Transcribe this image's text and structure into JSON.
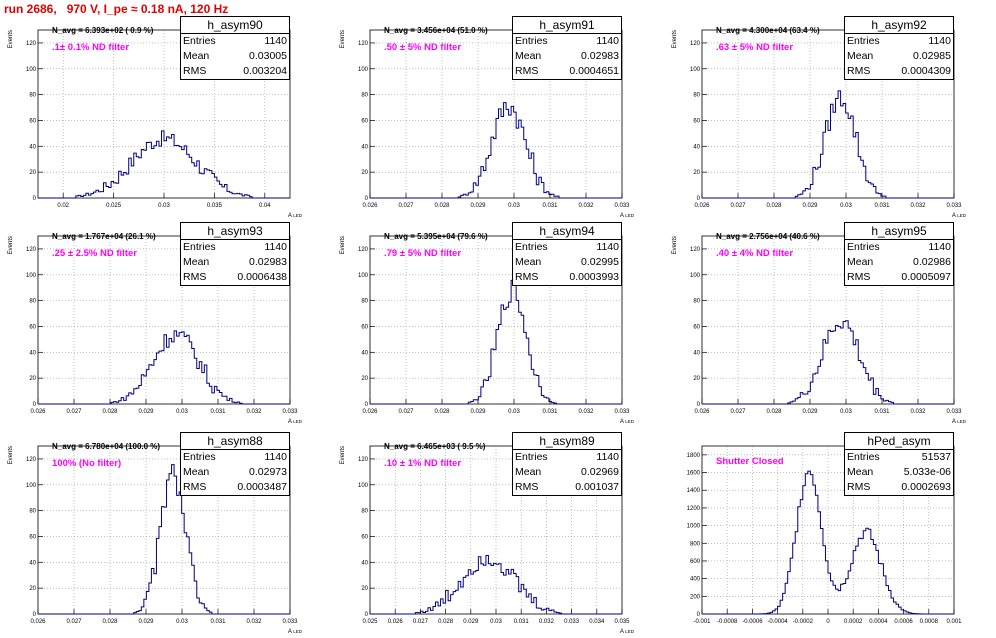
{
  "header": {
    "title": "run 2686,   970 V, I_pe ≈ 0.18 nA, 120 Hz"
  },
  "axis": {
    "ylabel": "Events",
    "xlabel": "A",
    "xlabel_sub": "LED"
  },
  "stat_labels": {
    "entries": "Entries",
    "mean": "Mean",
    "rms": "RMS"
  },
  "panels": [
    {
      "name": "h_asym90",
      "entries": "1140",
      "mean": "0.03005",
      "rms": "0.003204",
      "navg": "N_avg = 6.393e+02 ( 0.9 %)",
      "filter": ".1± 0.1% ND filter"
    },
    {
      "name": "h_asym91",
      "entries": "1140",
      "mean": "0.02983",
      "rms": "0.0004651",
      "navg": "N_avg = 3.456e+04 (51.0 %)",
      "filter": ".50 ± 5% ND filter"
    },
    {
      "name": "h_asym92",
      "entries": "1140",
      "mean": "0.02985",
      "rms": "0.0004309",
      "navg": "N_avg = 4.300e+04 (63.4 %)",
      "filter": ".63 ± 5% ND filter"
    },
    {
      "name": "h_asym93",
      "entries": "1140",
      "mean": "0.02983",
      "rms": "0.0006438",
      "navg": "N_avg = 1.767e+04 (26.1 %)",
      "filter": ".25 ± 2.5% ND filter"
    },
    {
      "name": "h_asym94",
      "entries": "1140",
      "mean": "0.02995",
      "rms": "0.0003993",
      "navg": "N_avg = 5.395e+04 (79.6 %)",
      "filter": ".79 ± 5% ND filter"
    },
    {
      "name": "h_asym95",
      "entries": "1140",
      "mean": "0.02986",
      "rms": "0.0005097",
      "navg": "N_avg = 2.756e+04 (40.6 %)",
      "filter": ".40 ± 4% ND filter"
    },
    {
      "name": "h_asym88",
      "entries": "1140",
      "mean": "0.02973",
      "rms": "0.0003487",
      "navg": "N_avg = 6.780e+04 (100.0 %)",
      "filter": "100% (No filter)"
    },
    {
      "name": "h_asym89",
      "entries": "1140",
      "mean": "0.02969",
      "rms": "0.001037",
      "navg": "N_avg = 6.465e+03 ( 9.5 %)",
      "filter": ".10 ± 1% ND filter"
    },
    {
      "name": "hPed_asym",
      "entries": "51537",
      "mean": "5.033e-06",
      "rms": "0.0002693",
      "navg": "",
      "filter": "Shutter Closed"
    }
  ],
  "chart_data": [
    {
      "type": "histogram",
      "title": "h_asym90",
      "xlabel": "A LED",
      "ylabel": "Events",
      "xlim": [
        0.0175,
        0.0425
      ],
      "ylim": [
        0,
        130
      ],
      "grid": true,
      "xticks": [
        0.02,
        0.025,
        0.03,
        0.035,
        0.04
      ],
      "xticklabels": [
        "0.02",
        "0.025",
        "0.03",
        "0.035",
        "0.04"
      ],
      "yticks": [
        0,
        20,
        40,
        60,
        80,
        100,
        120
      ],
      "yticklabels": [
        "0",
        "20",
        "40",
        "60",
        "80",
        "100",
        "120"
      ],
      "peaks": [
        {
          "mu": 0.03,
          "sigma": 0.0032,
          "amp": 46
        }
      ],
      "noise": 6
    },
    {
      "type": "histogram",
      "title": "h_asym91",
      "xlabel": "A LED",
      "ylabel": "Events",
      "xlim": [
        0.026,
        0.033
      ],
      "ylim": [
        0,
        130
      ],
      "grid": true,
      "xticks": [
        0.026,
        0.027,
        0.028,
        0.029,
        0.03,
        0.031,
        0.032,
        0.033
      ],
      "xticklabels": [
        "0.026",
        "0.027",
        "0.028",
        "0.029",
        "0.03",
        "0.031",
        "0.032",
        "0.033"
      ],
      "yticks": [
        0,
        20,
        40,
        60,
        80,
        100,
        120
      ],
      "yticklabels": [
        "0",
        "20",
        "40",
        "60",
        "80",
        "100",
        "120"
      ],
      "peaks": [
        {
          "mu": 0.02985,
          "sigma": 0.00047,
          "amp": 72
        }
      ],
      "noise": 9
    },
    {
      "type": "histogram",
      "title": "h_asym92",
      "xlabel": "A LED",
      "ylabel": "Events",
      "xlim": [
        0.026,
        0.033
      ],
      "ylim": [
        0,
        130
      ],
      "grid": true,
      "xticks": [
        0.026,
        0.027,
        0.028,
        0.029,
        0.03,
        0.031,
        0.032,
        0.033
      ],
      "xticklabels": [
        "0.026",
        "0.027",
        "0.028",
        "0.029",
        "0.03",
        "0.031",
        "0.032",
        "0.033"
      ],
      "yticks": [
        0,
        20,
        40,
        60,
        80,
        100,
        120
      ],
      "yticklabels": [
        "0",
        "20",
        "40",
        "60",
        "80",
        "100",
        "120"
      ],
      "peaks": [
        {
          "mu": 0.02985,
          "sigma": 0.00043,
          "amp": 78
        }
      ],
      "noise": 8
    },
    {
      "type": "histogram",
      "title": "h_asym93",
      "xlabel": "A LED",
      "ylabel": "Events",
      "xlim": [
        0.026,
        0.033
      ],
      "ylim": [
        0,
        130
      ],
      "grid": true,
      "xticks": [
        0.026,
        0.027,
        0.028,
        0.029,
        0.03,
        0.031,
        0.032,
        0.033
      ],
      "xticklabels": [
        "0.026",
        "0.027",
        "0.028",
        "0.029",
        "0.03",
        "0.031",
        "0.032",
        "0.033"
      ],
      "yticks": [
        0,
        20,
        40,
        60,
        80,
        100,
        120
      ],
      "yticklabels": [
        "0",
        "20",
        "40",
        "60",
        "80",
        "100",
        "120"
      ],
      "peaks": [
        {
          "mu": 0.02983,
          "sigma": 0.00064,
          "amp": 54
        }
      ],
      "noise": 7
    },
    {
      "type": "histogram",
      "title": "h_asym94",
      "xlabel": "A LED",
      "ylabel": "Events",
      "xlim": [
        0.026,
        0.033
      ],
      "ylim": [
        0,
        130
      ],
      "grid": true,
      "xticks": [
        0.026,
        0.027,
        0.028,
        0.029,
        0.03,
        0.031,
        0.032,
        0.033
      ],
      "xticklabels": [
        "0.026",
        "0.027",
        "0.028",
        "0.029",
        "0.03",
        "0.031",
        "0.032",
        "0.033"
      ],
      "yticks": [
        0,
        20,
        40,
        60,
        80,
        100,
        120
      ],
      "yticklabels": [
        "0",
        "20",
        "40",
        "60",
        "80",
        "100",
        "120"
      ],
      "peaks": [
        {
          "mu": 0.02995,
          "sigma": 0.0004,
          "amp": 88
        }
      ],
      "noise": 9
    },
    {
      "type": "histogram",
      "title": "h_asym95",
      "xlabel": "A LED",
      "ylabel": "Events",
      "xlim": [
        0.026,
        0.033
      ],
      "ylim": [
        0,
        130
      ],
      "grid": true,
      "xticks": [
        0.026,
        0.027,
        0.028,
        0.029,
        0.03,
        0.031,
        0.032,
        0.033
      ],
      "xticklabels": [
        "0.026",
        "0.027",
        "0.028",
        "0.029",
        "0.03",
        "0.031",
        "0.032",
        "0.033"
      ],
      "yticks": [
        0,
        20,
        40,
        60,
        80,
        100,
        120
      ],
      "yticklabels": [
        "0",
        "20",
        "40",
        "60",
        "80",
        "100",
        "120"
      ],
      "peaks": [
        {
          "mu": 0.02986,
          "sigma": 0.00051,
          "amp": 64
        }
      ],
      "noise": 8
    },
    {
      "type": "histogram",
      "title": "h_asym88",
      "xlabel": "A LED",
      "ylabel": "Events",
      "xlim": [
        0.026,
        0.033
      ],
      "ylim": [
        0,
        130
      ],
      "grid": true,
      "xticks": [
        0.026,
        0.027,
        0.028,
        0.029,
        0.03,
        0.031,
        0.032,
        0.033
      ],
      "xticklabels": [
        "0.026",
        "0.027",
        "0.028",
        "0.029",
        "0.03",
        "0.031",
        "0.032",
        "0.033"
      ],
      "yticks": [
        0,
        20,
        40,
        60,
        80,
        100,
        120
      ],
      "yticklabels": [
        "0",
        "20",
        "40",
        "60",
        "80",
        "100",
        "120"
      ],
      "peaks": [
        {
          "mu": 0.02975,
          "sigma": 0.00035,
          "amp": 108
        }
      ],
      "noise": 9
    },
    {
      "type": "histogram",
      "title": "h_asym89",
      "xlabel": "A LED",
      "ylabel": "Events",
      "xlim": [
        0.025,
        0.035
      ],
      "ylim": [
        0,
        130
      ],
      "grid": true,
      "xticks": [
        0.025,
        0.026,
        0.027,
        0.028,
        0.029,
        0.03,
        0.031,
        0.032,
        0.033,
        0.034,
        0.035
      ],
      "xticklabels": [
        "0.025",
        "0.026",
        "0.027",
        "0.028",
        "0.029",
        "0.03",
        "0.031",
        "0.032",
        "0.033",
        "0.034",
        "0.035"
      ],
      "yticks": [
        0,
        20,
        40,
        60,
        80,
        100,
        120
      ],
      "yticklabels": [
        "0",
        "20",
        "40",
        "60",
        "80",
        "100",
        "120"
      ],
      "peaks": [
        {
          "mu": 0.02969,
          "sigma": 0.00104,
          "amp": 44
        }
      ],
      "noise": 7
    },
    {
      "type": "histogram",
      "title": "hPed_asym",
      "xlabel": "",
      "ylabel": "",
      "xlim": [
        -0.001,
        0.001
      ],
      "ylim": [
        0,
        1900
      ],
      "grid": true,
      "xticks": [
        -0.001,
        -0.0008,
        -0.0006,
        -0.0004,
        -0.0002,
        0,
        0.0002,
        0.0004,
        0.0006,
        0.0008,
        0.001
      ],
      "xticklabels": [
        "-0.001",
        "-0.0008",
        "-0.0006",
        "-0.0004",
        "-0.0002",
        "0",
        "0.0002",
        "0.0004",
        "0.0006",
        "0.0008",
        "0.001"
      ],
      "yticks": [
        0,
        200,
        400,
        600,
        800,
        1000,
        1200,
        1400,
        1600,
        1800
      ],
      "yticklabels": [
        "0",
        "200",
        "400",
        "600",
        "800",
        "1000",
        "1200",
        "1400",
        "1600",
        "1800"
      ],
      "peaks": [
        {
          "mu": -0.00015,
          "sigma": 0.0001,
          "amp": 1620
        },
        {
          "mu": 0.0003,
          "sigma": 0.00012,
          "amp": 930
        }
      ],
      "noise": 60
    }
  ]
}
